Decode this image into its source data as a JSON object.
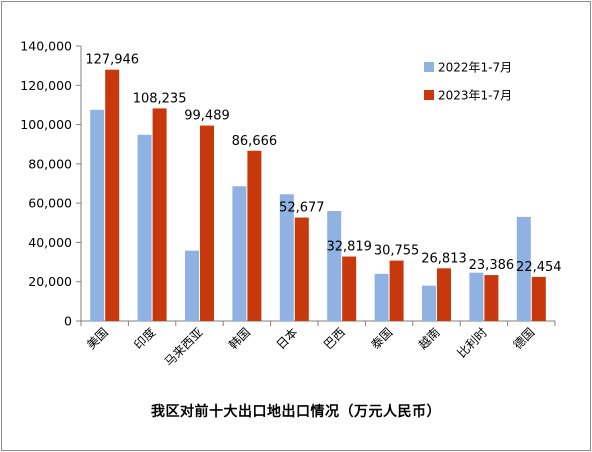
{
  "chart_data": {
    "type": "bar",
    "title": "我区对前十大出口地出口情况（万元人民币）",
    "categories": [
      "美国",
      "印度",
      "马来西亚",
      "韩国",
      "日本",
      "巴西",
      "泰国",
      "越南",
      "比利时",
      "德国"
    ],
    "series": [
      {
        "name": "2022年1-7月",
        "color": "#8FB2E2",
        "values": [
          107500,
          94800,
          35800,
          68600,
          64500,
          56000,
          24000,
          18000,
          24600,
          53000
        ]
      },
      {
        "name": "2023年1-7月",
        "color": "#C7380D",
        "values": [
          127946,
          108235,
          99489,
          86666,
          52677,
          32819,
          30755,
          26813,
          23386,
          22454
        ],
        "labels": [
          "127,946",
          "108,235",
          "99,489",
          "86,666",
          "52,677",
          "32,819",
          "30,755",
          "26,813",
          "23,386",
          "22,454"
        ]
      }
    ],
    "ylim": [
      0,
      140000
    ],
    "yticks": [
      0,
      20000,
      40000,
      60000,
      80000,
      100000,
      120000,
      140000
    ],
    "ytick_labels": [
      "0",
      "20,000",
      "40,000",
      "60,000",
      "80,000",
      "100,000",
      "120,000",
      "140,000"
    ],
    "xlabel": "",
    "ylabel": "",
    "grid": false,
    "legend_position": "top-right"
  }
}
